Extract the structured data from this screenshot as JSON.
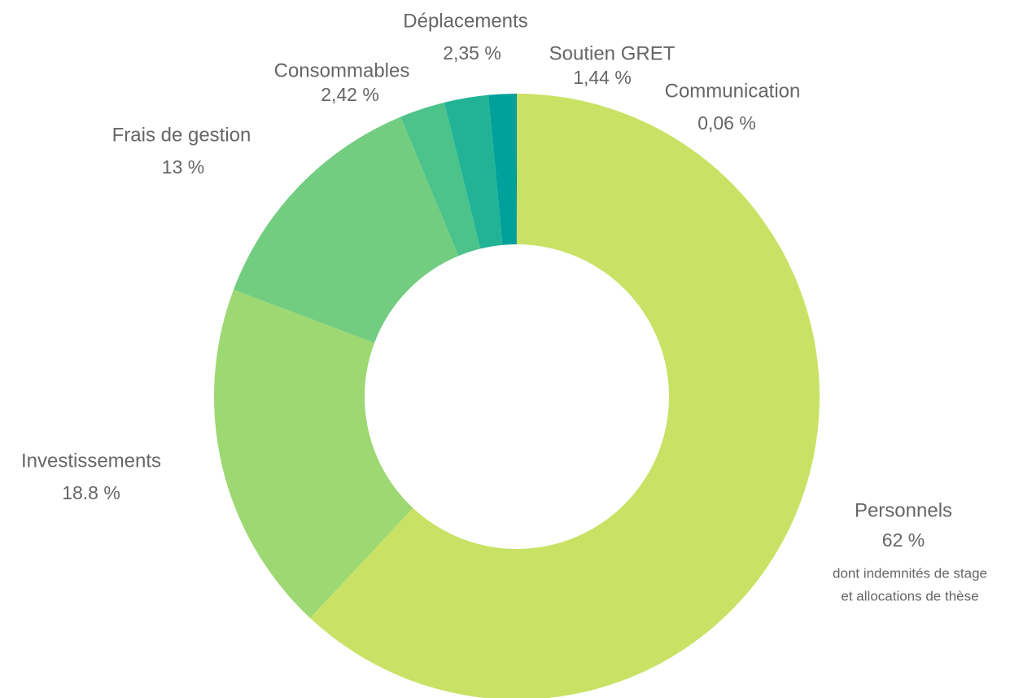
{
  "chart_data": {
    "type": "donut",
    "categories": [
      "Personnels",
      "Investissements",
      "Frais de gestion",
      "Consommables",
      "Déplacements",
      "Soutien GRET",
      "Communication"
    ],
    "values": [
      62,
      18.8,
      13,
      2.42,
      2.35,
      1.44,
      0.06
    ],
    "value_labels": [
      "62 %",
      "18.8 %",
      "13 %",
      "2,42 %",
      "2,35 %",
      "1,44 %",
      "0,06 %"
    ],
    "colors": [
      "#c9e265",
      "#9dd872",
      "#72cd80",
      "#4bc38a",
      "#22b396",
      "#00a19b",
      "#009090"
    ],
    "annotation": [
      "dont indemnités de stage",
      "et allocations de thèse"
    ]
  }
}
